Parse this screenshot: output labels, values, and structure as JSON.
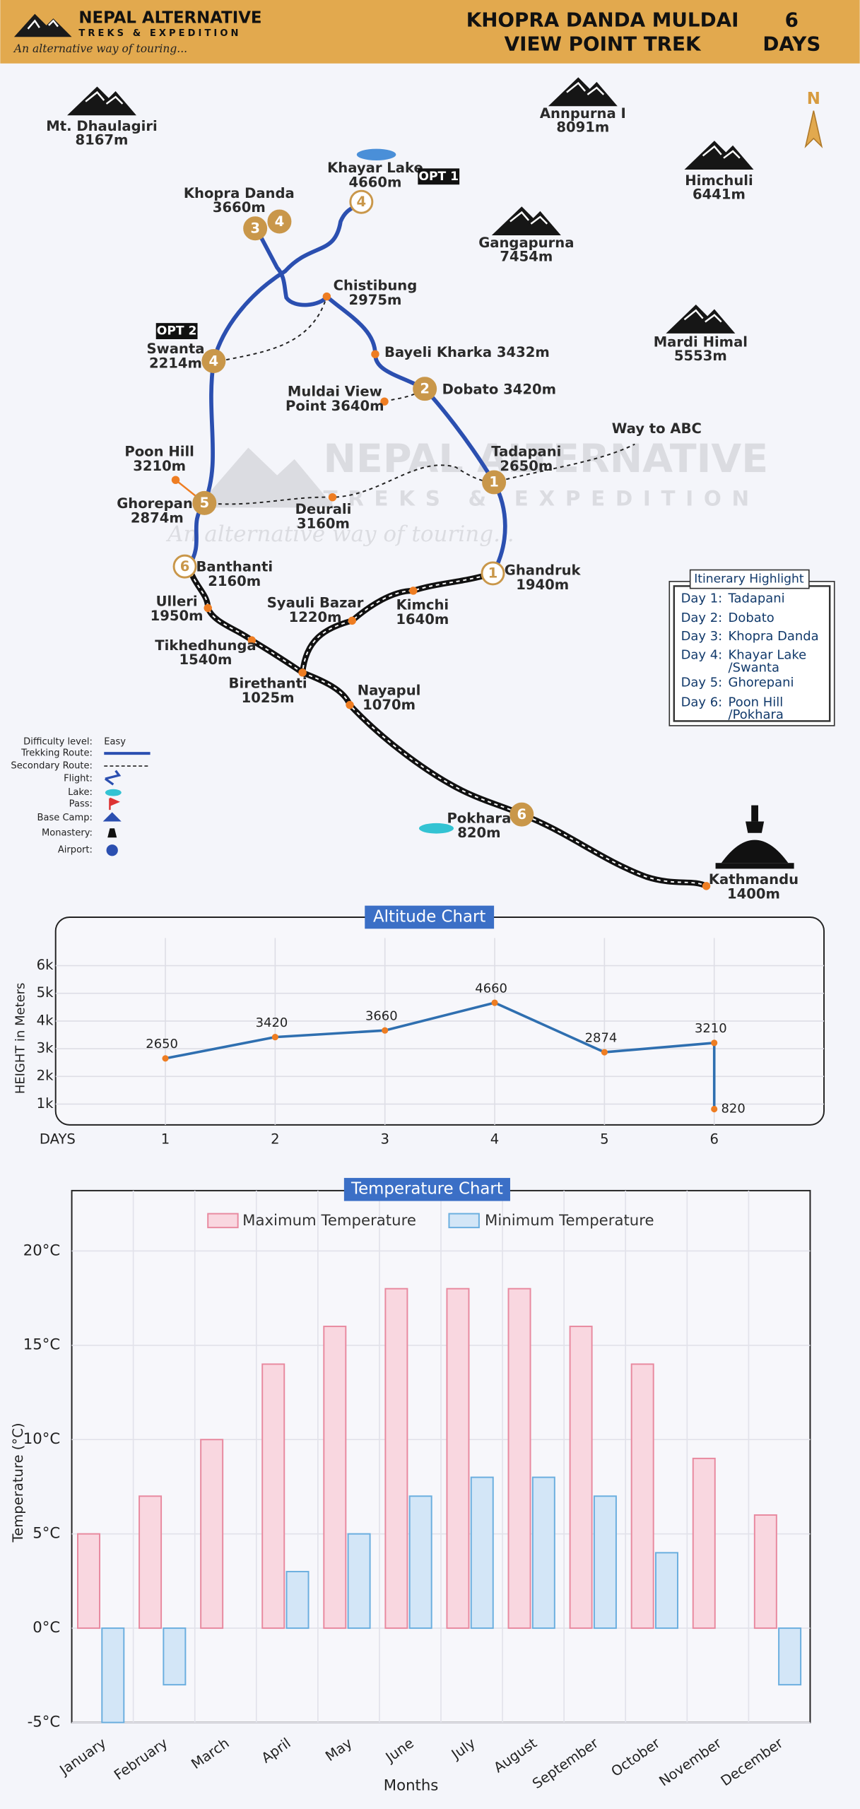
{
  "header": {
    "logo_name": "NEPAL ALTERNATIVE",
    "logo_sub": "TREKS & EXPEDITION",
    "tagline": "An alternative way of touring...",
    "title": [
      "KHOPRA DANDA MULDAI",
      "VIEW POINT TREK"
    ],
    "days_number": 6,
    "days_label": "DAYS"
  },
  "map": {
    "north": "N",
    "peaks": [
      {
        "name": "Mt. Dhaulagiri",
        "altitude": "8167m"
      },
      {
        "name": "Annpurna I",
        "altitude": "8091m"
      },
      {
        "name": "Himchuli",
        "altitude": "6441m"
      },
      {
        "name": "Gangapurna",
        "altitude": "7454m"
      },
      {
        "name": "Mardi Himal",
        "altitude": "5553m"
      }
    ],
    "places": [
      {
        "lines": [
          "Khayar Lake",
          "4660m"
        ]
      },
      {
        "lines": [
          "Khopra Danda",
          "3660m"
        ]
      },
      {
        "lines": [
          "Chistibung",
          "2975m"
        ]
      },
      {
        "lines": [
          "Swanta",
          "2214m"
        ]
      },
      {
        "lines": [
          "Bayeli Kharka 3432m"
        ]
      },
      {
        "lines": [
          "Muldai View",
          "Point 3640m"
        ]
      },
      {
        "lines": [
          "Dobato 3420m"
        ]
      },
      {
        "lines": [
          "Way to ABC"
        ]
      },
      {
        "lines": [
          "Tadapani",
          "2650m"
        ]
      },
      {
        "lines": [
          "Poon Hill",
          "3210m"
        ]
      },
      {
        "lines": [
          "Ghorepani",
          "2874m"
        ]
      },
      {
        "lines": [
          "Deurali",
          "3160m"
        ]
      },
      {
        "lines": [
          "Banthanti",
          "2160m"
        ]
      },
      {
        "lines": [
          "Ghandruk",
          "1940m"
        ]
      },
      {
        "lines": [
          "Ulleri",
          "1950m"
        ]
      },
      {
        "lines": [
          "Syauli Bazar",
          "1220m"
        ]
      },
      {
        "lines": [
          "Kimchi",
          "1640m"
        ]
      },
      {
        "lines": [
          "Tikhedhunga",
          "1540m"
        ]
      },
      {
        "lines": [
          "Birethanti",
          "1025m"
        ]
      },
      {
        "lines": [
          "Nayapul",
          "1070m"
        ]
      },
      {
        "lines": [
          "Pokhara",
          "820m"
        ]
      },
      {
        "lines": [
          "Kathmandu",
          "1400m"
        ]
      }
    ],
    "badges": [
      "OPT 1",
      "OPT 2"
    ],
    "day_markers": [
      3,
      4,
      4,
      4,
      2,
      1,
      1,
      5,
      6,
      6
    ]
  },
  "legend": {
    "items": [
      "Difficulty level:",
      "Trekking Route:",
      "Secondary Route:",
      "Flight:",
      "Lake:",
      "Pass:",
      "Base Camp:",
      "Monastery:",
      "Airport:"
    ],
    "difficulty": "Easy"
  },
  "itinerary": {
    "title": "Itinerary Highlight",
    "rows": [
      {
        "day": "Day 1:",
        "place": [
          "Tadapani"
        ]
      },
      {
        "day": "Day 2:",
        "place": [
          "Dobato"
        ]
      },
      {
        "day": "Day 3:",
        "place": [
          "Khopra Danda"
        ]
      },
      {
        "day": "Day 4:",
        "place": [
          "Khayar Lake",
          "/Swanta"
        ]
      },
      {
        "day": "Day 5:",
        "place": [
          "Ghorepani"
        ]
      },
      {
        "day": "Day 6:",
        "place": [
          "Poon Hill",
          "/Pokhara"
        ]
      }
    ]
  },
  "chart_data": [
    {
      "type": "line",
      "title": "Altitude Chart",
      "x_label": "DAYS",
      "y_label": "HEIGHT in Meters",
      "x": [
        1,
        2,
        3,
        4,
        5,
        6,
        6
      ],
      "series": [
        {
          "name": "Altitude",
          "color": "#2f6fb0",
          "values": [
            2650,
            3420,
            3660,
            4660,
            2874,
            3210,
            820
          ]
        }
      ],
      "marker_color": "#ee7d22",
      "xlim": [
        0,
        7
      ],
      "xticks": [
        1,
        2,
        3,
        4,
        5,
        6
      ],
      "ylim": [
        250,
        7000
      ],
      "yticks": [
        {
          "value": 1000,
          "label": "1k"
        },
        {
          "value": 2000,
          "label": "2k"
        },
        {
          "value": 3000,
          "label": "3k"
        },
        {
          "value": 4000,
          "label": "4k"
        },
        {
          "value": 5000,
          "label": "5k"
        },
        {
          "value": 6000,
          "label": "6k"
        }
      ],
      "grid": true
    },
    {
      "type": "bar",
      "title": "Temperature Chart",
      "x_label": "Months",
      "y_label": "Temperature (°C)",
      "categories": [
        "January",
        "February",
        "March",
        "April",
        "May",
        "June",
        "July",
        "August",
        "September",
        "October",
        "November",
        "December"
      ],
      "series": [
        {
          "name": "Maximum Temperature",
          "color": "#f9d7e0",
          "edge": "#e8899f",
          "values": [
            5,
            7,
            10,
            14,
            16,
            18,
            18,
            18,
            16,
            14,
            9,
            6
          ]
        },
        {
          "name": "Minimum Temperature",
          "color": "#d3e6f7",
          "edge": "#6aaedf",
          "values": [
            -5,
            -3,
            0,
            3,
            5,
            7,
            8,
            8,
            7,
            4,
            0,
            -3
          ]
        }
      ],
      "ylim": [
        -5,
        23.2
      ],
      "yticks": [
        {
          "value": -5,
          "label": "-5°C"
        },
        {
          "value": 0,
          "label": "0°C"
        },
        {
          "value": 5,
          "label": "5°C"
        },
        {
          "value": 10,
          "label": "10°C"
        },
        {
          "value": 15,
          "label": "15°C"
        },
        {
          "value": 20,
          "label": "20°C"
        }
      ],
      "grid": true,
      "legend": "top"
    }
  ]
}
